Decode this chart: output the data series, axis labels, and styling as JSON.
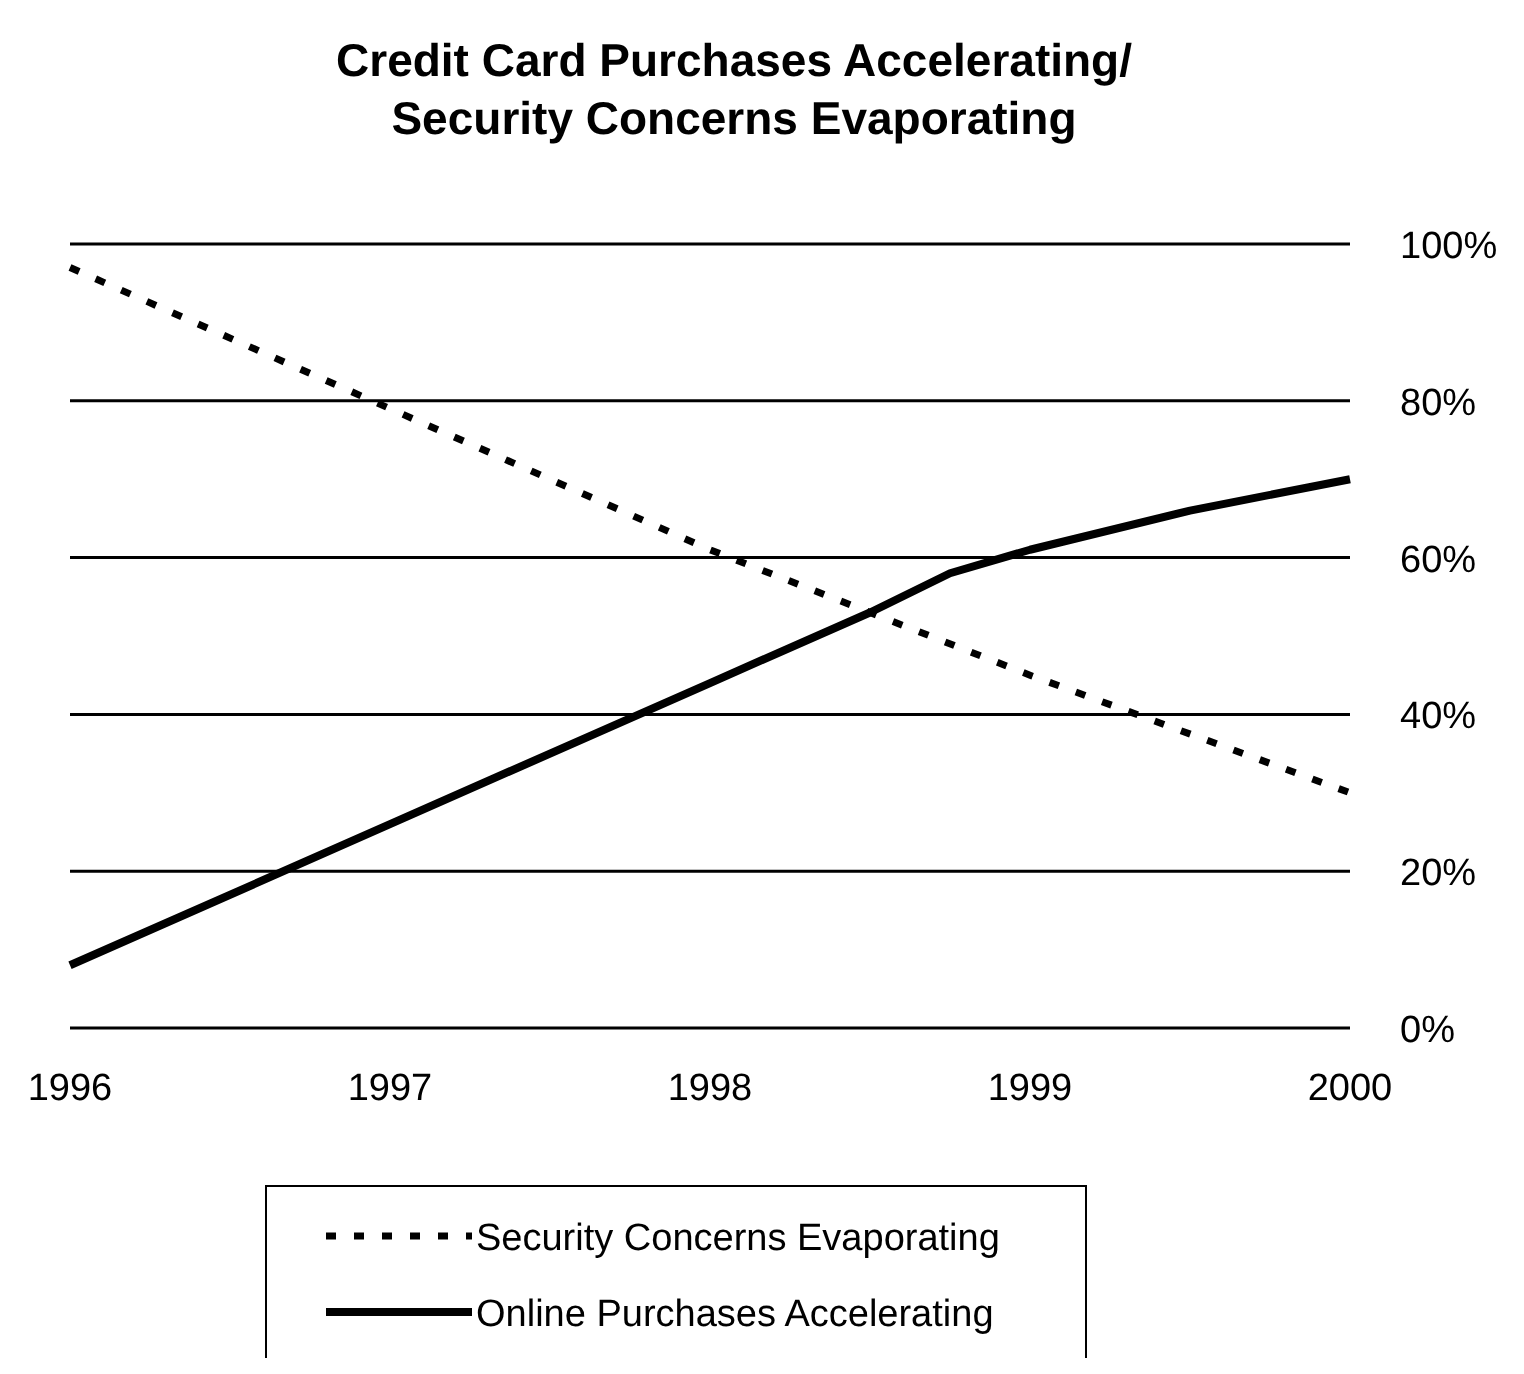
{
  "chart_data": {
    "type": "line",
    "title": "Credit Card Purchases Accelerating/\nSecurity Concerns Evaporating",
    "xlim": [
      1996,
      2000
    ],
    "xticks": [
      1996,
      1997,
      1998,
      1999,
      2000
    ],
    "ylim": [
      0,
      100
    ],
    "yticks": [
      {
        "value": 0,
        "label": "0%"
      },
      {
        "value": 20,
        "label": "20%"
      },
      {
        "value": 40,
        "label": "40%"
      },
      {
        "value": 60,
        "label": "60%"
      },
      {
        "value": 80,
        "label": "80%"
      },
      {
        "value": 100,
        "label": "100%"
      }
    ],
    "grid": "y",
    "legend": "bottom",
    "series": [
      {
        "name": "Security Concerns Evaporating",
        "color": "#000000",
        "line_style": "dashed",
        "x": [
          1996,
          1997,
          1998,
          1999,
          2000
        ],
        "values": [
          97,
          79,
          61,
          45,
          30
        ]
      },
      {
        "name": "Online Purchases Accelerating",
        "color": "#000000",
        "line_style": "solid",
        "x": [
          1996,
          1997,
          1998,
          1998.5,
          1998.75,
          1999,
          1999.5,
          2000
        ],
        "values": [
          8,
          26,
          44,
          53,
          58,
          61,
          66,
          70
        ]
      }
    ]
  }
}
